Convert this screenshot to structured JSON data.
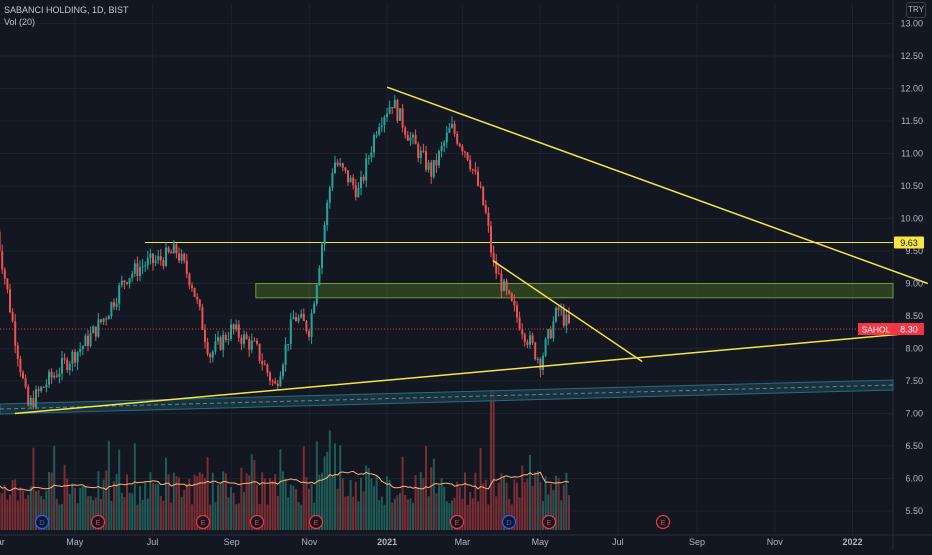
{
  "header": {
    "title": "SABANCI HOLDING, 1D, BIST",
    "indicator": "Vol (20)"
  },
  "currency_button": "TRY",
  "colors": {
    "background": "#131722",
    "up": "#26a69a",
    "down": "#ef5350",
    "trendline": "#f5e642",
    "zone": "#3d5c22",
    "channel": "#2a6b7a",
    "price_label": "#f23645",
    "level_label": "#f5e642",
    "grid": "#1e222d",
    "volume_ma": "#ffb27a"
  },
  "chart_data": {
    "type": "candlestick",
    "symbol": "SAHOL",
    "interval": "1D",
    "ylim": [
      5.25,
      13.25
    ],
    "y_ticks": [
      "13.00",
      "12.50",
      "12.00",
      "11.50",
      "11.00",
      "10.50",
      "10.00",
      "9.50",
      "9.00",
      "8.50",
      "8.00",
      "7.50",
      "7.00",
      "6.50",
      "6.00",
      "5.50"
    ],
    "x_ticks": [
      "Mar",
      "May",
      "Jul",
      "Sep",
      "Nov",
      "2021",
      "Mar",
      "May",
      "Jul",
      "Sep",
      "Nov",
      "2022"
    ],
    "event_markers": [
      "D",
      "E",
      "E",
      "E",
      "E",
      "E",
      "D",
      "E",
      "E"
    ],
    "price_label": {
      "symbol": "SAHOL",
      "value": "8.30"
    },
    "level_label": {
      "value": "9.63"
    },
    "horizontal_level": 9.63,
    "current_price": 8.3,
    "price_path": [
      [
        "2020-03-01",
        9.8
      ],
      [
        "2020-03-15",
        8.2
      ],
      [
        "2020-03-25",
        7.1
      ],
      [
        "2020-04-10",
        7.5
      ],
      [
        "2020-04-25",
        7.8
      ],
      [
        "2020-05-10",
        8.1
      ],
      [
        "2020-05-25",
        8.5
      ],
      [
        "2020-06-10",
        9.1
      ],
      [
        "2020-06-25",
        9.3
      ],
      [
        "2020-07-05",
        9.35
      ],
      [
        "2020-07-20",
        9.5
      ],
      [
        "2020-08-01",
        9.0
      ],
      [
        "2020-08-15",
        7.9
      ],
      [
        "2020-09-01",
        8.3
      ],
      [
        "2020-09-20",
        8.0
      ],
      [
        "2020-10-05",
        7.4
      ],
      [
        "2020-10-20",
        8.5
      ],
      [
        "2020-11-01",
        8.3
      ],
      [
        "2020-11-10",
        9.5
      ],
      [
        "2020-11-20",
        10.9
      ],
      [
        "2020-12-10",
        10.4
      ],
      [
        "2020-12-25",
        11.5
      ],
      [
        "2021-01-05",
        11.8
      ],
      [
        "2021-01-20",
        11.2
      ],
      [
        "2021-02-05",
        10.7
      ],
      [
        "2021-02-20",
        11.4
      ],
      [
        "2021-03-05",
        11.0
      ],
      [
        "2021-03-15",
        10.4
      ],
      [
        "2021-03-20",
        10.0
      ],
      [
        "2021-03-25",
        9.3
      ],
      [
        "2021-04-05",
        8.8
      ],
      [
        "2021-04-20",
        8.2
      ],
      [
        "2021-05-01",
        7.8
      ],
      [
        "2021-05-15",
        8.6
      ],
      [
        "2021-05-25",
        8.3
      ]
    ],
    "trendlines": [
      {
        "from": [
          "2021-01-01",
          12.02
        ],
        "to": [
          "2022-03-01",
          9.0
        ]
      },
      {
        "from": [
          "2021-03-25",
          9.35
        ],
        "to": [
          "2021-07-20",
          7.8
        ]
      },
      {
        "from": [
          "2020-03-15",
          7.0
        ],
        "to": [
          "2022-02-25",
          8.25
        ]
      }
    ],
    "zone": {
      "from": "2020-09-20",
      "low": 8.78,
      "high": 9.0
    },
    "volume": {
      "ylabel": "Vol (20)"
    }
  }
}
